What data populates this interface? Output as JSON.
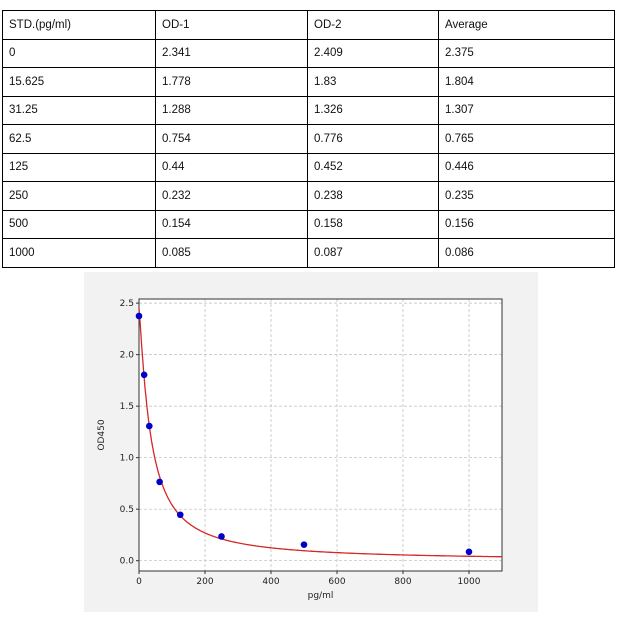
{
  "table": {
    "headers": [
      "STD.(pg/ml)",
      "OD-1",
      "OD-2",
      "Average"
    ],
    "rows": [
      [
        "0",
        "2.341",
        "2.409",
        "2.375"
      ],
      [
        "15.625",
        "1.778",
        "1.83",
        "1.804"
      ],
      [
        "31.25",
        "1.288",
        "1.326",
        "1.307"
      ],
      [
        "62.5",
        "0.754",
        "0.776",
        "0.765"
      ],
      [
        "125",
        "0.44",
        "0.452",
        "0.446"
      ],
      [
        "250",
        "0.232",
        "0.238",
        "0.235"
      ],
      [
        "500",
        "0.154",
        "0.158",
        "0.156"
      ],
      [
        "1000",
        "0.085",
        "0.087",
        "0.086"
      ]
    ]
  },
  "chart_data": {
    "type": "scatter",
    "xlabel": "pg/ml",
    "ylabel": "OD450",
    "xlim": [
      0,
      1100
    ],
    "ylim": [
      -0.1,
      2.54
    ],
    "xticks": [
      "0",
      "200",
      "400",
      "600",
      "800",
      "1000"
    ],
    "yticks": [
      "0.0",
      "0.5",
      "1.0",
      "1.5",
      "2.0",
      "2.5"
    ],
    "grid": true,
    "series": [
      {
        "x": [
          0,
          15.625,
          31.25,
          62.5,
          125,
          250,
          500,
          1000
        ],
        "y": [
          2.375,
          1.804,
          1.307,
          0.765,
          0.446,
          0.235,
          0.156,
          0.086
        ],
        "color": "#0000cc",
        "kind": "points"
      }
    ],
    "fit_curve": {
      "color": "#d62728",
      "kind": "four-parameter logistic fit"
    }
  }
}
